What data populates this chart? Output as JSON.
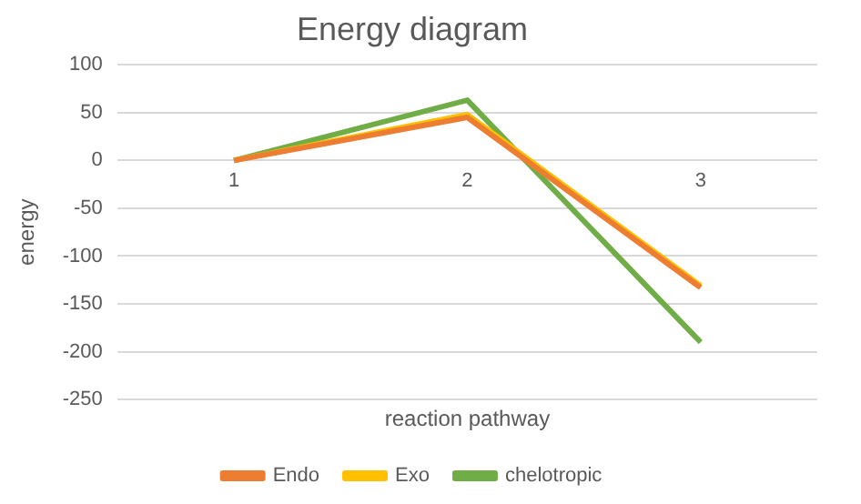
{
  "chart_data": {
    "type": "line",
    "title": "Energy diagram",
    "xlabel": "reaction pathway",
    "ylabel": "energy",
    "categories": [
      "1",
      "2",
      "3"
    ],
    "series": [
      {
        "name": "Endo",
        "color": "#ed7d31",
        "values": [
          0,
          45,
          -133
        ]
      },
      {
        "name": "Exo",
        "color": "#ffc000",
        "values": [
          0,
          48,
          -131
        ]
      },
      {
        "name": "chelotropic",
        "color": "#70ad47",
        "values": [
          0,
          63,
          -190
        ]
      }
    ],
    "ylim": [
      -250,
      100
    ],
    "yticks": [
      -250,
      -200,
      -150,
      -100,
      -50,
      0,
      50,
      100
    ],
    "grid": "y",
    "legend": "bottom",
    "marker": "none",
    "line_style": "solid"
  }
}
